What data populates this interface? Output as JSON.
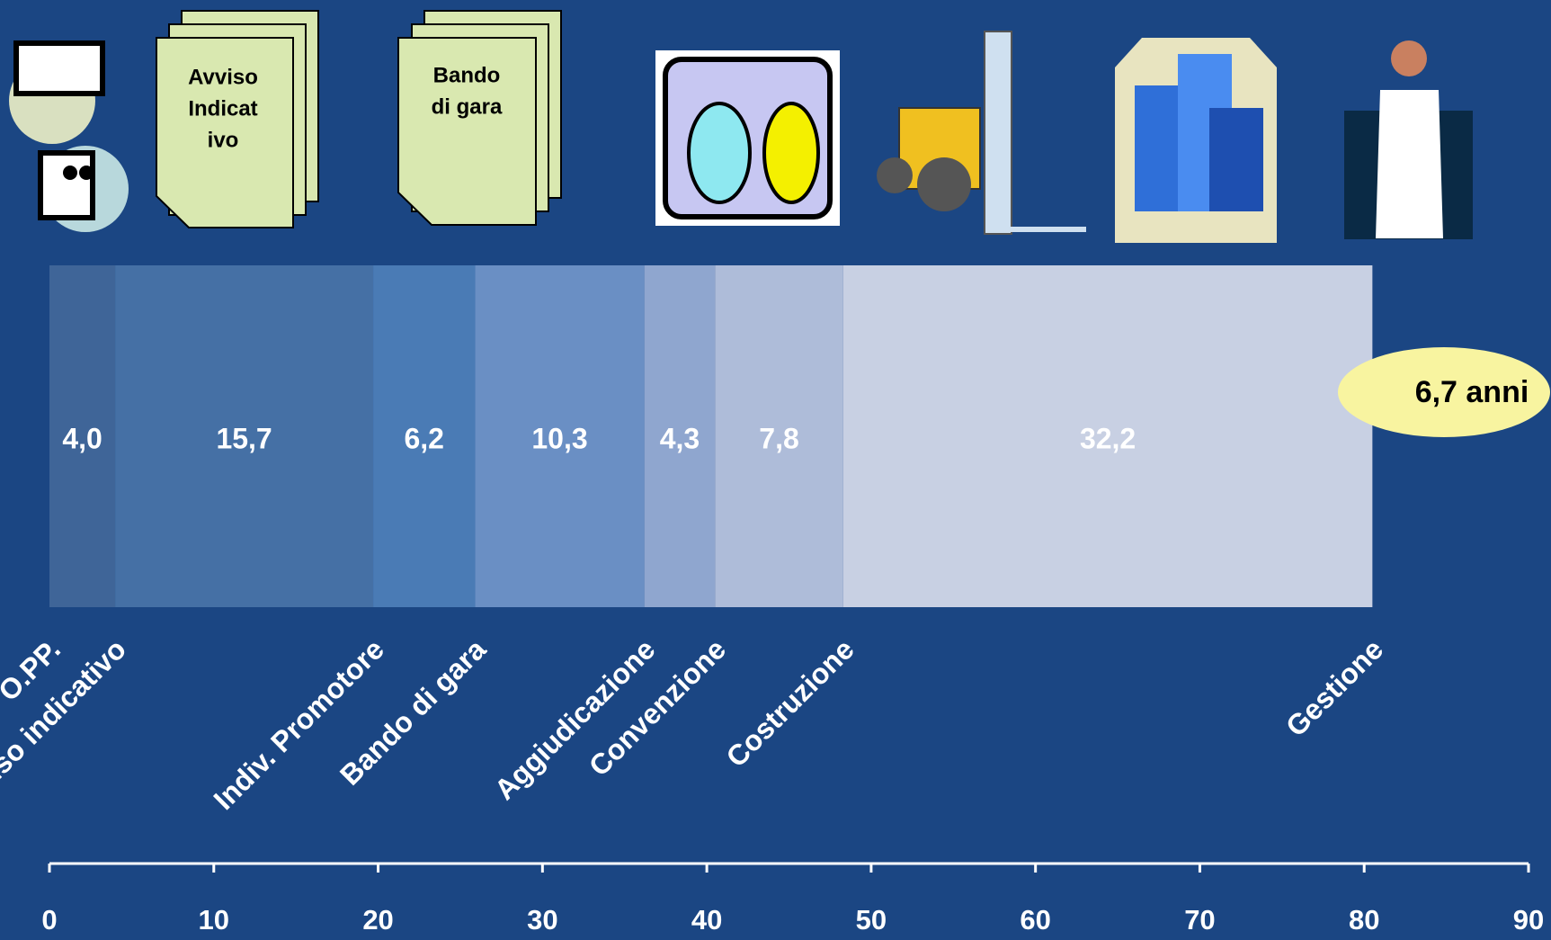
{
  "chart_data": {
    "type": "stacked_bar_horizontal",
    "start_label": "O.PP.",
    "series": [
      {
        "name": "Avviso indicativo",
        "color": "#3f6598",
        "values": [
          4.0
        ],
        "value_labels": [
          "4,0"
        ]
      },
      {
        "name": "Indiv. Promotore",
        "color": "#4570a5",
        "values": [
          15.7
        ],
        "value_labels": [
          "15,7"
        ]
      },
      {
        "name": "Bando di gara",
        "color": "#4a7bb5",
        "values": [
          6.2
        ],
        "value_labels": [
          "6,2"
        ]
      },
      {
        "name": "Aggiudicazione",
        "color": "#6a8fc4",
        "values": [
          10.3
        ],
        "value_labels": [
          "10,3"
        ]
      },
      {
        "name": "Convenzione",
        "color": "#8fa6cf",
        "values": [
          4.3
        ],
        "value_labels": [
          "4,3"
        ]
      },
      {
        "name": "Costruzione",
        "color": "#aebcd9",
        "values": [
          7.8
        ],
        "value_labels": [
          "7,8"
        ]
      },
      {
        "name": "Gestione",
        "color": "#c8d0e3",
        "values": [
          32.2
        ],
        "value_labels": [
          "32,2"
        ]
      }
    ],
    "xlim": [
      0,
      90
    ],
    "xticks": [
      0,
      10,
      20,
      30,
      40,
      50,
      60,
      70,
      80,
      90
    ],
    "annotation": "6,7 anni",
    "icon_labels": [
      [
        "Avviso",
        "Indicat",
        "ivo"
      ],
      [
        "Bando",
        "di gara"
      ]
    ]
  }
}
